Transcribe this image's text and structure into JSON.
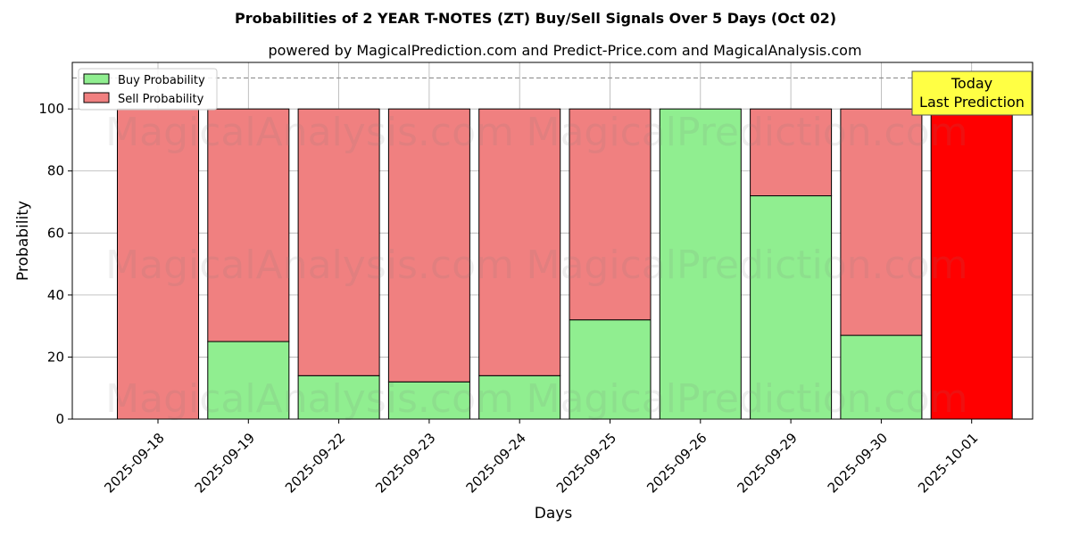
{
  "title": "Probabilities of 2 YEAR T-NOTES (ZT) Buy/Sell Signals Over 5 Days (Oct 02)",
  "subtitle": "powered by MagicalPrediction.com and Predict-Price.com and MagicalAnalysis.com",
  "watermarks": [
    "MagicalAnalysis.com",
    "MagicalPrediction.com"
  ],
  "annotation": {
    "line1": "Today",
    "line2": "Last Prediction",
    "bg_color": "#ffff44"
  },
  "colors": {
    "buy": "#90ee90",
    "sell": "#f08080",
    "last": "#ff0000",
    "edge": "#000000",
    "grid": "#b0b0b0",
    "ref_line": "#808080"
  },
  "chart_data": {
    "type": "bar",
    "stacked": true,
    "xlabel": "Days",
    "ylabel": "Probability",
    "ylim": [
      0,
      115
    ],
    "yticks": [
      0,
      20,
      40,
      60,
      80,
      100
    ],
    "reference_line": 110,
    "grid": true,
    "legend": {
      "position": "top-left",
      "entries": [
        "Buy Probability",
        "Sell Probability"
      ]
    },
    "categories": [
      "2025-09-18",
      "2025-09-19",
      "2025-09-22",
      "2025-09-23",
      "2025-09-24",
      "2025-09-25",
      "2025-09-26",
      "2025-09-29",
      "2025-09-30",
      "2025-10-01"
    ],
    "series": [
      {
        "name": "Buy Probability",
        "values": [
          0,
          25,
          14,
          12,
          14,
          32,
          100,
          72,
          27,
          0
        ]
      },
      {
        "name": "Sell Probability",
        "values": [
          100,
          75,
          86,
          88,
          86,
          68,
          0,
          28,
          73,
          100
        ]
      }
    ],
    "highlight_last": true
  }
}
